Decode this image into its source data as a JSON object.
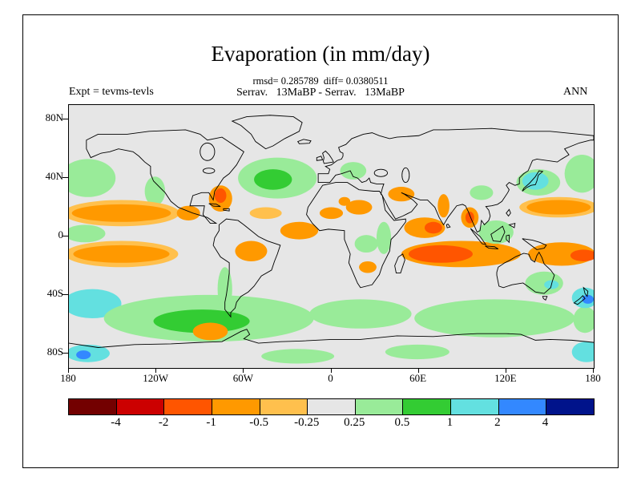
{
  "header": {
    "title": "Evaporation (in mm/day)",
    "stats_line": "rmsd= 0.285789  diff= 0.0380511",
    "experiment_line": "Serrav.   13MaBP - Serrav.   13MaBP",
    "expt_label": "Expt = tevms-tevls",
    "season_label": "ANN"
  },
  "axes": {
    "lat_tick_labels": [
      "80N",
      "40N",
      "0",
      "40S",
      "80S"
    ],
    "lat_tick_values": [
      80,
      40,
      0,
      -40,
      -80
    ],
    "lon_tick_labels": [
      "180",
      "120W",
      "60W",
      "0",
      "60E",
      "120E",
      "180"
    ],
    "lon_tick_values": [
      -180,
      -120,
      -60,
      0,
      60,
      120,
      180
    ]
  },
  "colorbar": {
    "colors": [
      "#730000",
      "#cc0000",
      "#ff5500",
      "#ff9900",
      "#ffc04d",
      "#e6e6e6",
      "#99eb99",
      "#33cc33",
      "#63e0e0",
      "#3388ff",
      "#00138b"
    ],
    "boundary_labels": [
      "-4",
      "-2",
      "-1",
      "-0.5",
      "-0.25",
      "0.25",
      "0.5",
      "1",
      "2",
      "4"
    ]
  },
  "map": {
    "background": "#e6e6e6",
    "coastline_color": "#000000",
    "blobs": [
      [
        13,
        50,
        19,
        13,
        6
      ],
      [
        59,
        59,
        7,
        10,
        6
      ],
      [
        36,
        74,
        40,
        9,
        4
      ],
      [
        36,
        74,
        34,
        6,
        3
      ],
      [
        82,
        74,
        8,
        5,
        3
      ],
      [
        11,
        88,
        14,
        6,
        6
      ],
      [
        36,
        102,
        39,
        9,
        4
      ],
      [
        36,
        102,
        33,
        6,
        3
      ],
      [
        16,
        136,
        20,
        10,
        8
      ],
      [
        96,
        146,
        72,
        16,
        6
      ],
      [
        91,
        148,
        33,
        8,
        7
      ],
      [
        200,
        143,
        35,
        10,
        6
      ],
      [
        300,
        149,
        25,
        6,
        7
      ],
      [
        97,
        155,
        12,
        6,
        3
      ],
      [
        104,
        64,
        8,
        9,
        3
      ],
      [
        104,
        62,
        4,
        5,
        2
      ],
      [
        143,
        50,
        27,
        14,
        6
      ],
      [
        140,
        51,
        13,
        7,
        7
      ],
      [
        135,
        74,
        11,
        4,
        4
      ],
      [
        158,
        86,
        13,
        6,
        3
      ],
      [
        125,
        100,
        11,
        7,
        3
      ],
      [
        107,
        126,
        5,
        15,
        6
      ],
      [
        199,
        70,
        9,
        5,
        3
      ],
      [
        189,
        66,
        4,
        3,
        3
      ],
      [
        180,
        74,
        8,
        4,
        3
      ],
      [
        195,
        45,
        9,
        6,
        6
      ],
      [
        228,
        61,
        9,
        5,
        3
      ],
      [
        244,
        84,
        14,
        7,
        3
      ],
      [
        250,
        84,
        6,
        4,
        2
      ],
      [
        216,
        91,
        5,
        11,
        6
      ],
      [
        204,
        95,
        8,
        6,
        6
      ],
      [
        205,
        111,
        6,
        4,
        3
      ],
      [
        257,
        69,
        4,
        8,
        3
      ],
      [
        275,
        77,
        6,
        7,
        3
      ],
      [
        275,
        77,
        3,
        4,
        2
      ],
      [
        269,
        102,
        41,
        9,
        3
      ],
      [
        255,
        102,
        22,
        6,
        2
      ],
      [
        293,
        87,
        12,
        8,
        6
      ],
      [
        283,
        60,
        8,
        5,
        6
      ],
      [
        336,
        70,
        27,
        7,
        4
      ],
      [
        336,
        70,
        22,
        5,
        3
      ],
      [
        338,
        102,
        23,
        8,
        3
      ],
      [
        353,
        103,
        9,
        4,
        2
      ],
      [
        322,
        53,
        15,
        9,
        6
      ],
      [
        320,
        52,
        9,
        6,
        8
      ],
      [
        352,
        47,
        12,
        13,
        6
      ],
      [
        326,
        122,
        13,
        8,
        6
      ],
      [
        331,
        123,
        5,
        3,
        8
      ],
      [
        292,
        146,
        55,
        13,
        6
      ],
      [
        354,
        147,
        8,
        9,
        6
      ],
      [
        354,
        132,
        9,
        7,
        8
      ],
      [
        356,
        133,
        4,
        3,
        9
      ],
      [
        355,
        169,
        10,
        7,
        8
      ],
      [
        13,
        170,
        15,
        6,
        8
      ],
      [
        10,
        171,
        5,
        3,
        9
      ],
      [
        157,
        172,
        25,
        5,
        6
      ],
      [
        239,
        169,
        22,
        5,
        6
      ]
    ]
  },
  "chart_data": {
    "type": "heatmap",
    "title": "Evaporation (in mm/day)",
    "units": "mm/day",
    "season": "ANN",
    "experiment": "tevms-tevls",
    "comparison": "Serrav. 13MaBP - Serrav. 13MaBP",
    "rmsd": 0.285789,
    "diff": 0.0380511,
    "projection": "equirectangular",
    "lon_range": [
      -180,
      180
    ],
    "lat_range": [
      -90,
      90
    ],
    "contour_levels": [
      -4,
      -2,
      -1,
      -0.5,
      -0.25,
      0.25,
      0.5,
      1,
      2,
      4
    ],
    "palette": [
      "#730000",
      "#cc0000",
      "#ff5500",
      "#ff9900",
      "#ffc04d",
      "#e6e6e6",
      "#99eb99",
      "#33cc33",
      "#63e0e0",
      "#3388ff",
      "#00138b"
    ],
    "anomaly_regions": [
      {
        "area": "NE Pacific 30-50N near dateline",
        "value": "+0.25 to +0.5"
      },
      {
        "area": "tropical North Pacific band 5-20N",
        "value": "-0.5 to -0.25"
      },
      {
        "area": "tropical South Pacific band 5-20S",
        "value": "-0.5 to -0.25"
      },
      {
        "area": "SE Pacific 40-55S",
        "value": "+1 to +2"
      },
      {
        "area": "Southern Ocean 45-70S (Pacific-Atlantic sector)",
        "value": "+0.25 to +1"
      },
      {
        "area": "Caribbean / W Atlantic ~25N",
        "value": "-1 to -4"
      },
      {
        "area": "central North Atlantic 25-50N",
        "value": "+0.25 to +1"
      },
      {
        "area": "equatorial Atlantic",
        "value": "-0.5 to -0.25"
      },
      {
        "area": "central Brazil",
        "value": "-0.5 to -0.25"
      },
      {
        "area": "Sahara / Sahel spots",
        "value": "-0.5 to -0.25"
      },
      {
        "area": "Europe / Mediterranean",
        "value": "+0.25 to +0.5"
      },
      {
        "area": "Arabian Peninsula",
        "value": "-0.5 to -0.25"
      },
      {
        "area": "Arabian Sea 50-80E",
        "value": "-1 to -2"
      },
      {
        "area": "East Africa strip",
        "value": "+0.25 to +0.5"
      },
      {
        "area": "India strip",
        "value": "-0.5"
      },
      {
        "area": "Bay of Bengal / Myanmar",
        "value": "-1 to -2"
      },
      {
        "area": "S Indian Ocean 5-20S, 50-130E",
        "value": "-0.5 to -2"
      },
      {
        "area": "Maritime Continent",
        "value": "+0.25 to +0.5"
      },
      {
        "area": "W tropical Pacific 130E-180",
        "value": "-0.25 to -1"
      },
      {
        "area": "NW Pacific east of Japan",
        "value": "+1 to +2"
      },
      {
        "area": "eastern Australia",
        "value": "+0.25 to +2"
      },
      {
        "area": "S Indian Ocean 45-65S",
        "value": "+0.25 to +1"
      },
      {
        "area": "SW Pacific near New Zealand",
        "value": "+1 to +2"
      },
      {
        "area": "Antarctic coastal patches",
        "value": "+0.25 to +2"
      }
    ]
  }
}
